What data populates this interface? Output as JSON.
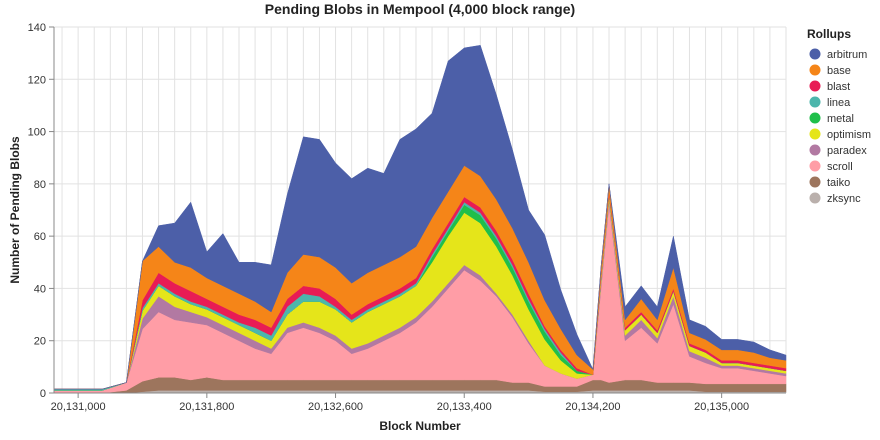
{
  "chart_data": {
    "type": "area",
    "stacked": true,
    "title": "Pending Blobs in Mempool (4,000 block range)",
    "xlabel": "Block Number",
    "ylabel": "Number of Pending Blobs",
    "xlim": [
      20130850,
      20135400
    ],
    "ylim": [
      0,
      140
    ],
    "x_ticks": [
      {
        "value": 20131000,
        "label": "20,131,000"
      },
      {
        "value": 20131800,
        "label": "20,131,800"
      },
      {
        "value": 20132600,
        "label": "20,132,600"
      },
      {
        "value": 20133400,
        "label": "20,133,400"
      },
      {
        "value": 20134200,
        "label": "20,134,200"
      },
      {
        "value": 20135000,
        "label": "20,135,000"
      }
    ],
    "y_ticks": [
      0,
      20,
      40,
      60,
      80,
      100,
      120,
      140
    ],
    "grid": true,
    "legend": {
      "title": "Rollups",
      "position": "right"
    },
    "x": [
      20130850,
      20131000,
      20131150,
      20131300,
      20131400,
      20131500,
      20131600,
      20131700,
      20131800,
      20131900,
      20132000,
      20132100,
      20132200,
      20132300,
      20132400,
      20132500,
      20132600,
      20132700,
      20132800,
      20132900,
      20133000,
      20133100,
      20133200,
      20133300,
      20133400,
      20133500,
      20133600,
      20133700,
      20133800,
      20133900,
      20134000,
      20134100,
      20134200,
      20134250,
      20134300,
      20134400,
      20134500,
      20134600,
      20134700,
      20134800,
      20134900,
      20135000,
      20135100,
      20135200,
      20135300,
      20135400
    ],
    "series": [
      {
        "name": "zksync",
        "color": "#bab0ac",
        "values": [
          0,
          0,
          0,
          0,
          0.5,
          1,
          1,
          1,
          1,
          1,
          1,
          1,
          1,
          1,
          1,
          1,
          1,
          1,
          1,
          1,
          1,
          1,
          1,
          1,
          1,
          1,
          1,
          1,
          1,
          0.5,
          0.5,
          0.5,
          1,
          1,
          1,
          1,
          1,
          1,
          1,
          1,
          0.5,
          0.5,
          0.5,
          0.5,
          0.5,
          0.5
        ]
      },
      {
        "name": "taiko",
        "color": "#9d755d",
        "values": [
          0,
          0,
          0,
          1,
          4,
          5,
          5,
          4,
          5,
          4,
          4,
          4,
          4,
          4,
          4,
          4,
          4,
          4,
          4,
          4,
          4,
          4,
          4,
          4,
          4,
          4,
          4,
          3,
          3,
          2,
          2,
          2,
          4,
          4,
          3,
          4,
          4,
          3,
          3,
          3,
          3,
          3,
          3,
          3,
          3,
          3
        ]
      },
      {
        "name": "scroll",
        "color": "#ff9da6",
        "values": [
          1,
          1,
          1,
          3,
          20,
          25,
          22,
          22,
          20,
          18,
          15,
          12,
          10,
          18,
          20,
          18,
          15,
          10,
          12,
          15,
          18,
          22,
          28,
          35,
          42,
          38,
          32,
          25,
          15,
          8,
          5,
          3,
          2,
          35,
          68,
          15,
          20,
          15,
          30,
          10,
          8,
          6,
          6,
          5,
          4,
          3
        ]
      },
      {
        "name": "paradex",
        "color": "#b279a2",
        "values": [
          0,
          0,
          0,
          0,
          4,
          6,
          5,
          4,
          3,
          3,
          3,
          3,
          2,
          2,
          2,
          2,
          2,
          2,
          2,
          2,
          2,
          2,
          2,
          2,
          2,
          2,
          1,
          1,
          1,
          0,
          0,
          0,
          0,
          2,
          2,
          2,
          3,
          2,
          3,
          2,
          2,
          1,
          1,
          1,
          1,
          1
        ]
      },
      {
        "name": "optimism",
        "color": "#e5e51a",
        "values": [
          0,
          0,
          0,
          0,
          3,
          4,
          4,
          3,
          3,
          3,
          3,
          3,
          3,
          5,
          8,
          10,
          10,
          10,
          12,
          12,
          12,
          12,
          15,
          18,
          20,
          20,
          18,
          15,
          12,
          10,
          5,
          2,
          0,
          2,
          2,
          2,
          2,
          2,
          2,
          2,
          2,
          1,
          1,
          1,
          1,
          1
        ]
      },
      {
        "name": "metal",
        "color": "#1fbf4a",
        "values": [
          0,
          0,
          0,
          0,
          0,
          0,
          0,
          0,
          0,
          0,
          0,
          0,
          0,
          0,
          0,
          0,
          0,
          0,
          0,
          0,
          0,
          0,
          2,
          2,
          3,
          3,
          3,
          3,
          3,
          3,
          2,
          1,
          0,
          0,
          0,
          0,
          0,
          0,
          0,
          0,
          0,
          0,
          0,
          0,
          0,
          0
        ]
      },
      {
        "name": "linea",
        "color": "#4cb6ac",
        "values": [
          0.5,
          0.5,
          0.5,
          0,
          1,
          1,
          1,
          1,
          1,
          1,
          1,
          2,
          2,
          3,
          3,
          2,
          1,
          1,
          1,
          1,
          1,
          1,
          1,
          1,
          1,
          1,
          1,
          1,
          1,
          1,
          1,
          0,
          0,
          0,
          0,
          0,
          0,
          0,
          0,
          0,
          0,
          0,
          0,
          0,
          0,
          0
        ]
      },
      {
        "name": "blast",
        "color": "#e81c55",
        "values": [
          0,
          0,
          0,
          0,
          3,
          4,
          4,
          4,
          3,
          3,
          3,
          3,
          3,
          3,
          3,
          3,
          3,
          2,
          2,
          2,
          2,
          2,
          2,
          2,
          2,
          2,
          2,
          2,
          2,
          1,
          1,
          1,
          0,
          1,
          1,
          1,
          1,
          1,
          1,
          1,
          1,
          1,
          1,
          1,
          1,
          1
        ]
      },
      {
        "name": "base",
        "color": "#f58518",
        "values": [
          0,
          0,
          0,
          0,
          15,
          10,
          8,
          9,
          8,
          8,
          8,
          7,
          6,
          10,
          12,
          12,
          12,
          12,
          12,
          12,
          12,
          12,
          12,
          12,
          12,
          12,
          12,
          12,
          12,
          10,
          8,
          5,
          2,
          3,
          3,
          3,
          5,
          4,
          8,
          4,
          4,
          4,
          4,
          4,
          3,
          3
        ]
      },
      {
        "name": "arbitrum",
        "color": "#4c5fa8",
        "values": [
          0,
          0,
          0,
          0,
          0,
          8,
          15,
          25,
          10,
          20,
          12,
          15,
          18,
          30,
          45,
          45,
          40,
          40,
          40,
          35,
          45,
          45,
          40,
          50,
          45,
          50,
          40,
          30,
          20,
          25,
          15,
          8,
          0,
          0,
          0,
          5,
          5,
          5,
          12,
          5,
          5,
          4,
          4,
          4,
          3,
          2
        ]
      }
    ]
  }
}
